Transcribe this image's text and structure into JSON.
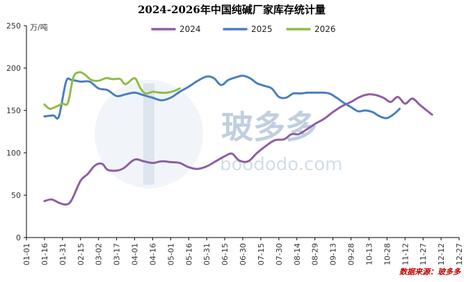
{
  "chart_data": {
    "type": "line",
    "title": "2024-2026年中国纯碱厂家库存统计量",
    "yunit": "万/吨",
    "ylim": [
      0,
      250
    ],
    "yticks": [
      0,
      50,
      100,
      150,
      200,
      250
    ],
    "categories": [
      "01-01",
      "01-16",
      "01-31",
      "02-15",
      "03-02",
      "03-17",
      "04-01",
      "04-16",
      "05-01",
      "05-16",
      "05-31",
      "06-15",
      "06-30",
      "07-15",
      "07-30",
      "08-14",
      "08-29",
      "09-13",
      "09-28",
      "10-13",
      "10-28",
      "11-12",
      "11-27",
      "12-12",
      "12-27"
    ],
    "legend_position": "top",
    "series": [
      {
        "name": "2024",
        "color": "#8e5ea2",
        "points": [
          [
            1,
            43
          ],
          [
            1.4,
            45
          ],
          [
            1.8,
            41
          ],
          [
            2.2,
            39
          ],
          [
            2.5,
            44
          ],
          [
            3,
            67
          ],
          [
            3.4,
            75
          ],
          [
            3.8,
            85
          ],
          [
            4.2,
            87
          ],
          [
            4.5,
            80
          ],
          [
            5,
            79
          ],
          [
            5.4,
            82
          ],
          [
            6,
            92
          ],
          [
            6.5,
            90
          ],
          [
            7,
            88
          ],
          [
            7.5,
            90
          ],
          [
            8,
            89
          ],
          [
            8.5,
            88
          ],
          [
            9,
            83
          ],
          [
            9.5,
            81
          ],
          [
            10,
            84
          ],
          [
            10.5,
            90
          ],
          [
            11,
            96
          ],
          [
            11.4,
            99
          ],
          [
            11.8,
            91
          ],
          [
            12.3,
            90
          ],
          [
            12.8,
            100
          ],
          [
            13.4,
            110
          ],
          [
            13.8,
            115
          ],
          [
            14.3,
            116
          ],
          [
            14.7,
            122
          ],
          [
            15.1,
            122
          ],
          [
            15.5,
            127
          ],
          [
            16,
            134
          ],
          [
            16.5,
            140
          ],
          [
            17,
            148
          ],
          [
            17.5,
            155
          ],
          [
            18,
            160
          ],
          [
            18.5,
            166
          ],
          [
            19,
            169
          ],
          [
            19.4,
            168
          ],
          [
            19.8,
            165
          ],
          [
            20.2,
            160
          ],
          [
            20.6,
            166
          ],
          [
            21,
            158
          ],
          [
            21.4,
            164
          ],
          [
            21.8,
            157
          ],
          [
            22.2,
            150
          ],
          [
            22.5,
            145
          ]
        ]
      },
      {
        "name": "2025",
        "color": "#4a7fbf",
        "points": [
          [
            1,
            143
          ],
          [
            1.5,
            144
          ],
          [
            1.8,
            143
          ],
          [
            2.2,
            184
          ],
          [
            2.5,
            186
          ],
          [
            3,
            184
          ],
          [
            3.5,
            184
          ],
          [
            4,
            176
          ],
          [
            4.5,
            174
          ],
          [
            5,
            167
          ],
          [
            5.5,
            169
          ],
          [
            6,
            171
          ],
          [
            6.5,
            168
          ],
          [
            7,
            165
          ],
          [
            7.5,
            162
          ],
          [
            8,
            165
          ],
          [
            8.5,
            172
          ],
          [
            9,
            178
          ],
          [
            9.5,
            185
          ],
          [
            10,
            190
          ],
          [
            10.4,
            188
          ],
          [
            10.8,
            180
          ],
          [
            11.2,
            186
          ],
          [
            11.6,
            189
          ],
          [
            12,
            191
          ],
          [
            12.4,
            188
          ],
          [
            12.8,
            182
          ],
          [
            13.2,
            179
          ],
          [
            13.6,
            176
          ],
          [
            14,
            166
          ],
          [
            14.4,
            165
          ],
          [
            14.8,
            170
          ],
          [
            15.2,
            170
          ],
          [
            15.6,
            171
          ],
          [
            16,
            171
          ],
          [
            16.4,
            171
          ],
          [
            16.8,
            170
          ],
          [
            17.2,
            165
          ],
          [
            17.6,
            159
          ],
          [
            18,
            154
          ],
          [
            18.4,
            149
          ],
          [
            18.8,
            150
          ],
          [
            19.2,
            148
          ],
          [
            19.6,
            143
          ],
          [
            20,
            141
          ],
          [
            20.4,
            146
          ],
          [
            20.7,
            152
          ]
        ]
      },
      {
        "name": "2026",
        "color": "#8fbc45",
        "points": [
          [
            1,
            157
          ],
          [
            1.3,
            152
          ],
          [
            1.7,
            155
          ],
          [
            2,
            158
          ],
          [
            2.3,
            159
          ],
          [
            2.6,
            189
          ],
          [
            2.9,
            195
          ],
          [
            3.2,
            193
          ],
          [
            3.6,
            186
          ],
          [
            4,
            185
          ],
          [
            4.4,
            188
          ],
          [
            4.8,
            187
          ],
          [
            5.2,
            187
          ],
          [
            5.5,
            181
          ],
          [
            6,
            188
          ],
          [
            6.3,
            177
          ],
          [
            6.6,
            170
          ],
          [
            7,
            172
          ],
          [
            7.4,
            171
          ],
          [
            7.8,
            171
          ],
          [
            8.2,
            173
          ],
          [
            8.5,
            176
          ]
        ]
      }
    ]
  },
  "watermark": {
    "brand": "玻多多",
    "url": "boododo.com"
  },
  "source_text": "数据来源：玻多多"
}
